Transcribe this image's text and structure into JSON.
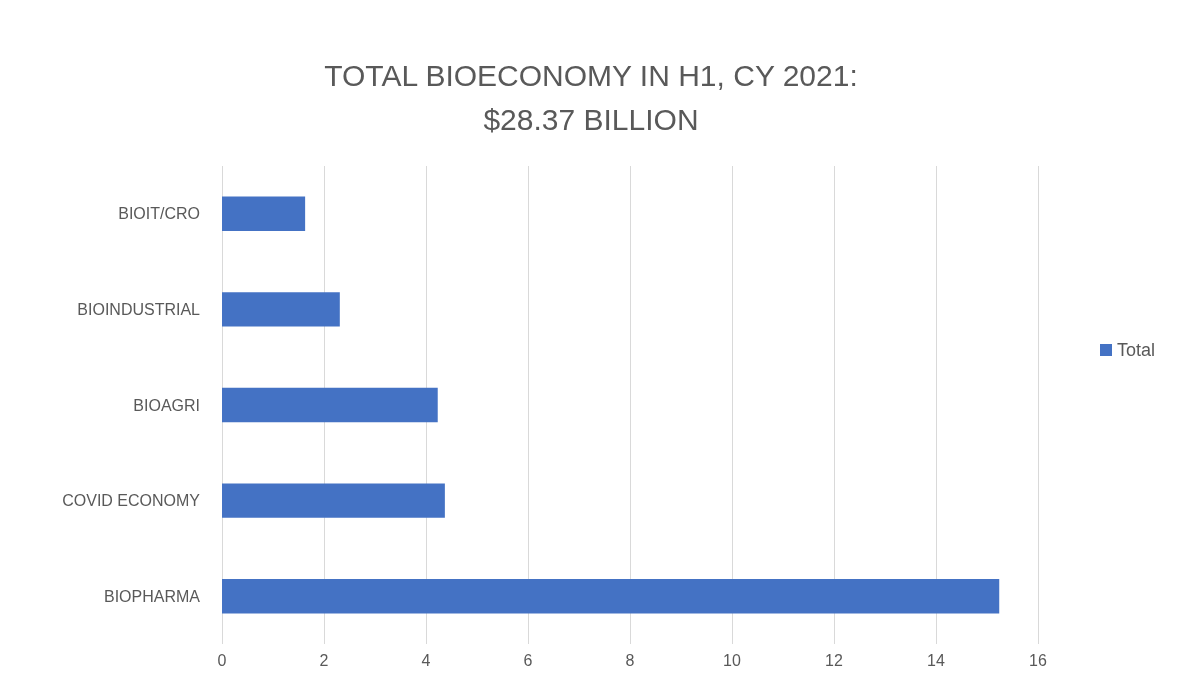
{
  "chart_data": {
    "type": "bar",
    "orientation": "horizontal",
    "title": "TOTAL BIOECONOMY IN H1, CY 2021:\n$28.37 BILLION",
    "categories": [
      "BIOIT/CRO",
      "BIOINDUSTRIAL",
      "BIOAGRI",
      "COVID ECONOMY",
      "BIOPHARMA"
    ],
    "series": [
      {
        "name": "Total",
        "color": "#4472c4",
        "values": [
          1.63,
          2.31,
          4.23,
          4.37,
          15.24
        ]
      }
    ],
    "xlim": [
      0,
      16
    ],
    "xticks": [
      0,
      2,
      4,
      6,
      8,
      10,
      12,
      14,
      16
    ],
    "grid": "x",
    "legend": "right"
  }
}
